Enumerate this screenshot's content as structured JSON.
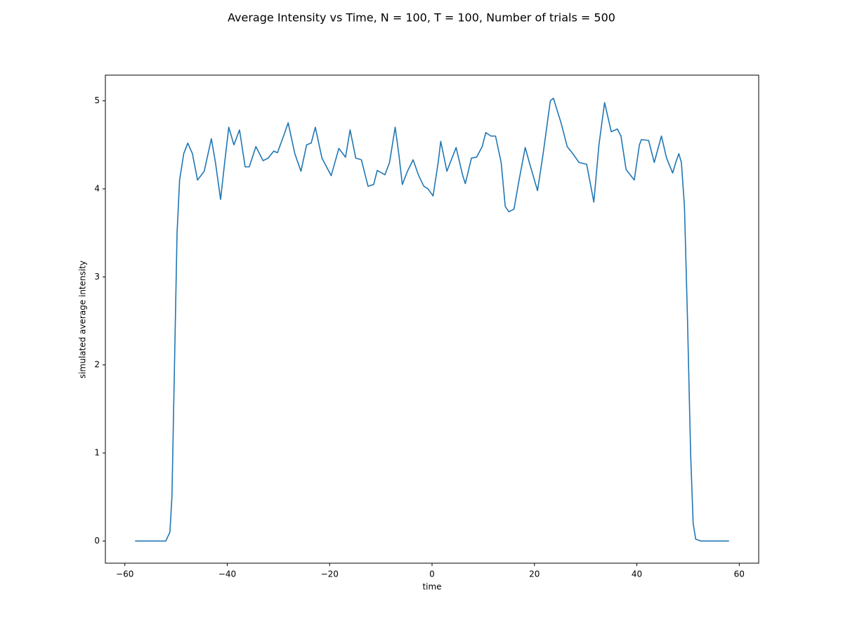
{
  "chart_data": {
    "type": "line",
    "title": "Average Intensity vs Time, N = 100, T = 100, Number of trials = 500",
    "x_label": "time",
    "y_label": "simulated average intensity",
    "x": [
      -58,
      -52,
      -51.2,
      -50.8,
      -50.3,
      -49.8,
      -49.3,
      -48.5,
      -47.7,
      -46.8,
      -45.8,
      -44.5,
      -43.1,
      -42.3,
      -41.3,
      -40.5,
      -39.7,
      -38.7,
      -37.6,
      -36.5,
      -35.7,
      -34.4,
      -33,
      -32,
      -30.9,
      -30.2,
      -29,
      -28.1,
      -26.8,
      -25.6,
      -24.5,
      -23.6,
      -22.8,
      -21.5,
      -19.7,
      -18.2,
      -16.9,
      -16,
      -14.9,
      -13.8,
      -12.5,
      -11.4,
      -10.7,
      -9.2,
      -8.3,
      -7.2,
      -6.5,
      -5.8,
      -4.8,
      -3.7,
      -2.6,
      -1.6,
      -0.8,
      0.2,
      1.2,
      1.7,
      2.9,
      4.7,
      6,
      6.5,
      7.7,
      8.7,
      9.8,
      10.5,
      11.5,
      12.4,
      13.5,
      14.3,
      15,
      16,
      17,
      18.2,
      19,
      20,
      20.6,
      21.7,
      23.1,
      23.7,
      25.2,
      26.4,
      27.5,
      28.7,
      30.2,
      31.6,
      32.6,
      33.7,
      35,
      36.2,
      36.9,
      37.9,
      39.5,
      40.5,
      40.9,
      42.3,
      43.4,
      44.8,
      45.8,
      47,
      47.6,
      48.2,
      48.7,
      49.3,
      49.9,
      50.5,
      51,
      51.5,
      52.5,
      58
    ],
    "series": [
      {
        "name": "average intensity",
        "color": "#1f77b4",
        "values": [
          0,
          0,
          0.1,
          0.5,
          2,
          3.5,
          4.1,
          4.4,
          4.52,
          4.4,
          4.1,
          4.2,
          4.57,
          4.3,
          3.88,
          4.3,
          4.7,
          4.5,
          4.67,
          4.25,
          4.25,
          4.48,
          4.32,
          4.35,
          4.43,
          4.41,
          4.6,
          4.75,
          4.4,
          4.2,
          4.5,
          4.52,
          4.7,
          4.35,
          4.15,
          4.46,
          4.36,
          4.67,
          4.35,
          4.33,
          4.03,
          4.05,
          4.21,
          4.16,
          4.3,
          4.7,
          4.4,
          4.05,
          4.2,
          4.33,
          4.15,
          4.03,
          4,
          3.92,
          4.3,
          4.54,
          4.2,
          4.47,
          4.15,
          4.06,
          4.35,
          4.36,
          4.48,
          4.64,
          4.6,
          4.6,
          4.3,
          3.8,
          3.74,
          3.77,
          4.1,
          4.47,
          4.3,
          4.1,
          3.98,
          4.4,
          5,
          5.03,
          4.75,
          4.48,
          4.4,
          4.3,
          4.28,
          3.85,
          4.5,
          4.98,
          4.65,
          4.68,
          4.6,
          4.22,
          4.1,
          4.5,
          4.56,
          4.55,
          4.3,
          4.6,
          4.35,
          4.18,
          4.3,
          4.4,
          4.3,
          3.8,
          2.5,
          1,
          0.2,
          0.02,
          0,
          0
        ]
      }
    ],
    "xlim": [
      -63.8,
      63.8
    ],
    "xticks": [
      {
        "value": -60,
        "label": "−60"
      },
      {
        "value": -40,
        "label": "−40"
      },
      {
        "value": -20,
        "label": "−20"
      },
      0,
      20,
      40,
      60
    ],
    "ylim": [
      -0.252,
      5.292
    ],
    "yticks": [
      0,
      1,
      2,
      3,
      4,
      5
    ],
    "grid": false
  }
}
